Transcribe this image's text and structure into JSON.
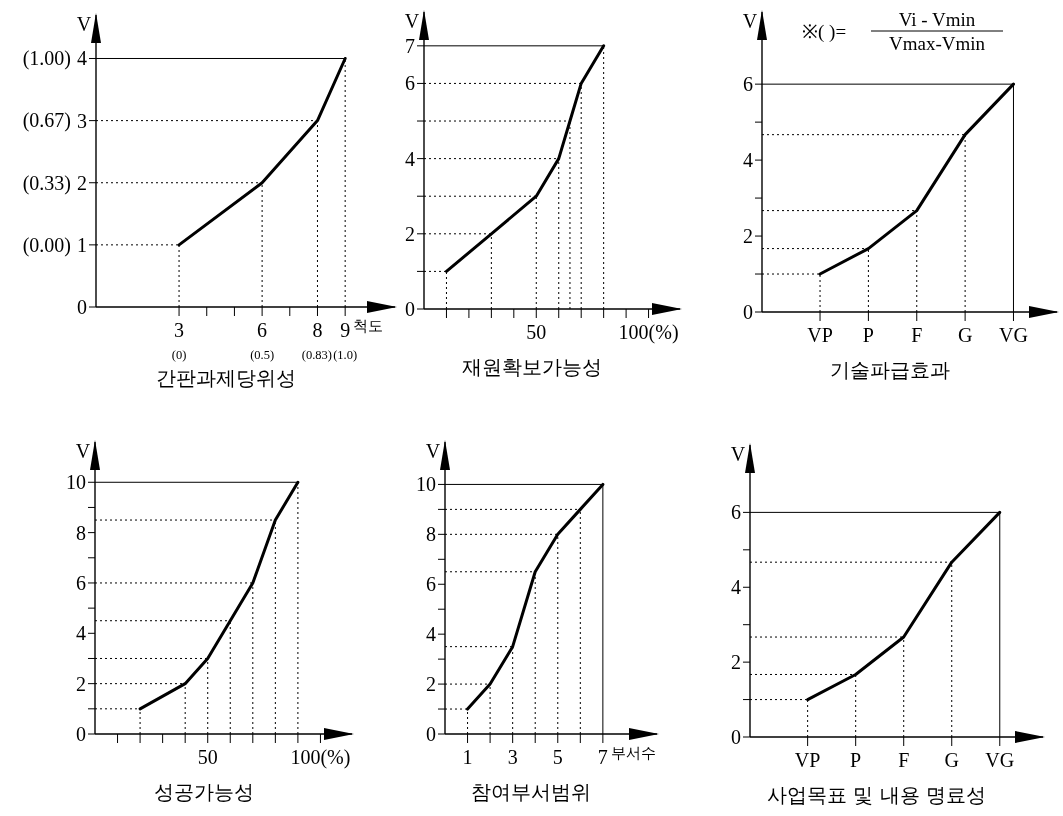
{
  "chart_data": [
    {
      "type": "line",
      "ylabel": "V",
      "xlabel": "간판과제당위성",
      "color": "#000000",
      "annotations": [
        "척도"
      ],
      "x": [
        3,
        6,
        8,
        9
      ],
      "values": [
        1,
        2,
        3,
        4
      ],
      "xlim": [
        0,
        10.8
      ],
      "ylim": [
        0,
        4.7
      ],
      "xticks": [
        3,
        {
          "value": 4,
          "label": null
        },
        {
          "value": 5,
          "label": null
        },
        6,
        {
          "value": 7,
          "label": null
        },
        8,
        9
      ],
      "x2lim": [
        -0.5,
        1.3
      ],
      "x2ticks": [
        {
          "value": 0,
          "label": "(0)"
        },
        {
          "value": 0.5,
          "label": "(0.5)"
        },
        {
          "value": 0.83,
          "label": "(0.83)"
        },
        {
          "value": 1,
          "label": "(1.0)"
        }
      ],
      "yticks": [
        0,
        1,
        2,
        3,
        4
      ],
      "y2lim": [
        -0.3333,
        1.2333
      ],
      "y2ticks": [
        {
          "value": 0,
          "label": "(0.00)"
        },
        {
          "value": 0.33,
          "label": "(0.33)"
        },
        {
          "value": 0.67,
          "label": "(0.67)"
        },
        {
          "value": 1,
          "label": "(1.00)"
        }
      ],
      "ref_lines": [
        {
          "axis": "y",
          "value": 1,
          "line_style": "dotted",
          "color": "#000000"
        },
        {
          "axis": "y",
          "value": 2,
          "line_style": "dotted",
          "color": "#000000"
        },
        {
          "axis": "y",
          "value": 3,
          "line_style": "dotted",
          "color": "#000000"
        },
        {
          "axis": "y",
          "value": 4,
          "line_style": "solid",
          "color": "#000000"
        },
        {
          "axis": "x",
          "value": 3,
          "line_style": "dotted",
          "color": "#000000"
        },
        {
          "axis": "x",
          "value": 6,
          "line_style": "dotted",
          "color": "#000000"
        },
        {
          "axis": "x",
          "value": 8,
          "line_style": "dotted",
          "color": "#000000"
        },
        {
          "axis": "x",
          "value": 9,
          "line_style": "dotted",
          "color": "#000000"
        }
      ]
    },
    {
      "type": "line",
      "ylabel": "V",
      "xlabel": "재원확보가능성",
      "color": "#000000",
      "x": [
        10,
        30,
        50,
        60,
        65,
        70,
        80
      ],
      "values": [
        1,
        2,
        3,
        4,
        5,
        6,
        7
      ],
      "xlim": [
        0,
        114
      ],
      "ylim": [
        0,
        7.9
      ],
      "xticks": [
        {
          "value": 10,
          "label": null
        },
        {
          "value": 20,
          "label": null
        },
        {
          "value": 30,
          "label": null
        },
        {
          "value": 40,
          "label": null
        },
        50,
        {
          "value": 60,
          "label": null
        },
        {
          "value": 70,
          "label": null
        },
        {
          "value": 80,
          "label": null
        },
        {
          "value": 90,
          "label": null
        },
        {
          "value": 100,
          "label": "100(%)"
        }
      ],
      "yticks": [
        0,
        {
          "value": 1,
          "label": null
        },
        2,
        {
          "value": 3,
          "label": null
        },
        4,
        {
          "value": 5,
          "label": null
        },
        6,
        7
      ],
      "ref_lines": [
        {
          "axis": "y",
          "value": 1,
          "line_style": "dotted",
          "color": "#000000"
        },
        {
          "axis": "y",
          "value": 2,
          "line_style": "dotted",
          "color": "#000000"
        },
        {
          "axis": "y",
          "value": 3,
          "line_style": "dotted",
          "color": "#000000"
        },
        {
          "axis": "y",
          "value": 4,
          "line_style": "dotted",
          "color": "#000000"
        },
        {
          "axis": "y",
          "value": 5,
          "line_style": "dotted",
          "color": "#000000"
        },
        {
          "axis": "y",
          "value": 6,
          "line_style": "dotted",
          "color": "#000000"
        },
        {
          "axis": "y",
          "value": 7,
          "line_style": "solid",
          "color": "#000000"
        },
        {
          "axis": "x",
          "value": 10,
          "line_style": "dotted",
          "color": "#000000"
        },
        {
          "axis": "x",
          "value": 30,
          "line_style": "dotted",
          "color": "#000000"
        },
        {
          "axis": "x",
          "value": 50,
          "line_style": "dotted",
          "color": "#000000"
        },
        {
          "axis": "x",
          "value": 60,
          "line_style": "dotted",
          "color": "#000000"
        },
        {
          "axis": "x",
          "value": 65,
          "line_style": "dotted",
          "color": "#000000"
        },
        {
          "axis": "x",
          "value": 70,
          "line_style": "dotted",
          "color": "#000000"
        },
        {
          "axis": "x",
          "value": 80,
          "line_style": "dotted",
          "color": "#000000"
        }
      ]
    },
    {
      "type": "line",
      "ylabel": "V",
      "xlabel": "기술파급효과",
      "color": "#000000",
      "annotations": [
        "※( )=",
        "Vi - Vmin",
        "Vmax-Vmin"
      ],
      "categories": [
        "VP",
        "P",
        "F",
        "G",
        "VG"
      ],
      "values": [
        1,
        1.67,
        2.67,
        4.67,
        6
      ],
      "ylim": [
        0,
        7.9
      ],
      "yticks": [
        0,
        {
          "value": 1,
          "label": null
        },
        2,
        {
          "value": 3,
          "label": null
        },
        4,
        {
          "value": 5,
          "label": null
        },
        6
      ],
      "ref_lines": [
        {
          "axis": "y",
          "value": 1,
          "line_style": "dotted",
          "color": "#000000"
        },
        {
          "axis": "y",
          "value": 1.67,
          "line_style": "dotted",
          "color": "#000000"
        },
        {
          "axis": "y",
          "value": 2.67,
          "line_style": "dotted",
          "color": "#000000"
        },
        {
          "axis": "y",
          "value": 4.67,
          "line_style": "dotted",
          "color": "#000000"
        },
        {
          "axis": "y",
          "value": 6,
          "line_style": "solid",
          "color": "#000000"
        },
        {
          "axis": "x",
          "value": "VP",
          "line_style": "dotted",
          "color": "#000000"
        },
        {
          "axis": "x",
          "value": "P",
          "line_style": "dotted",
          "color": "#000000"
        },
        {
          "axis": "x",
          "value": "F",
          "line_style": "dotted",
          "color": "#000000"
        },
        {
          "axis": "x",
          "value": "G",
          "line_style": "dotted",
          "color": "#000000"
        },
        {
          "axis": "x",
          "value": "VG",
          "line_style": "solid",
          "color": "#000000"
        }
      ]
    },
    {
      "type": "line",
      "ylabel": "V",
      "xlabel": "성공가능성",
      "color": "#000000",
      "x": [
        20,
        40,
        50,
        60,
        70,
        80,
        90
      ],
      "values": [
        1,
        2,
        3,
        4.5,
        6,
        8.5,
        10
      ],
      "xlim": [
        0,
        114
      ],
      "ylim": [
        0,
        11.6
      ],
      "xticks": [
        {
          "value": 10,
          "label": null
        },
        {
          "value": 20,
          "label": null
        },
        {
          "value": 30,
          "label": null
        },
        {
          "value": 40,
          "label": null
        },
        50,
        {
          "value": 60,
          "label": null
        },
        {
          "value": 70,
          "label": null
        },
        {
          "value": 80,
          "label": null
        },
        {
          "value": 90,
          "label": null
        },
        {
          "value": 100,
          "label": "100(%)"
        }
      ],
      "yticks": [
        0,
        {
          "value": 1,
          "label": null
        },
        2,
        {
          "value": 3,
          "label": null
        },
        4,
        {
          "value": 5,
          "label": null
        },
        6,
        {
          "value": 7,
          "label": null
        },
        8,
        {
          "value": 9,
          "label": null
        },
        10
      ],
      "ref_lines": [
        {
          "axis": "y",
          "value": 1,
          "line_style": "dotted",
          "color": "#000000"
        },
        {
          "axis": "y",
          "value": 2,
          "line_style": "dotted",
          "color": "#000000"
        },
        {
          "axis": "y",
          "value": 3,
          "line_style": "dotted",
          "color": "#000000"
        },
        {
          "axis": "y",
          "value": 4.5,
          "line_style": "dotted",
          "color": "#000000"
        },
        {
          "axis": "y",
          "value": 6,
          "line_style": "dotted",
          "color": "#000000"
        },
        {
          "axis": "y",
          "value": 8.5,
          "line_style": "dotted",
          "color": "#000000"
        },
        {
          "axis": "y",
          "value": 10,
          "line_style": "solid",
          "color": "#000000"
        },
        {
          "axis": "x",
          "value": 20,
          "line_style": "dotted",
          "color": "#000000"
        },
        {
          "axis": "x",
          "value": 40,
          "line_style": "dotted",
          "color": "#000000"
        },
        {
          "axis": "x",
          "value": 50,
          "line_style": "dotted",
          "color": "#000000"
        },
        {
          "axis": "x",
          "value": 60,
          "line_style": "dotted",
          "color": "#000000"
        },
        {
          "axis": "x",
          "value": 70,
          "line_style": "dotted",
          "color": "#000000"
        },
        {
          "axis": "x",
          "value": 80,
          "line_style": "dotted",
          "color": "#000000"
        },
        {
          "axis": "x",
          "value": 90,
          "line_style": "dotted",
          "color": "#000000"
        }
      ]
    },
    {
      "type": "line",
      "ylabel": "V",
      "xlabel": "참여부서범위",
      "color": "#000000",
      "annotations": [
        "부서수"
      ],
      "x": [
        1,
        2,
        3,
        4,
        5,
        6,
        7
      ],
      "values": [
        1,
        2,
        3.5,
        6.5,
        8,
        9,
        10
      ],
      "xlim": [
        0,
        9.4
      ],
      "ylim": [
        0,
        11.7
      ],
      "xticks": [
        1,
        {
          "value": 2,
          "label": null
        },
        3,
        {
          "value": 4,
          "label": null
        },
        5,
        {
          "value": 6,
          "label": null
        },
        7
      ],
      "yticks": [
        0,
        {
          "value": 1,
          "label": null
        },
        2,
        {
          "value": 3,
          "label": null
        },
        4,
        {
          "value": 5,
          "label": null
        },
        6,
        {
          "value": 7,
          "label": null
        },
        8,
        {
          "value": 9,
          "label": null
        },
        10
      ],
      "ref_lines": [
        {
          "axis": "y",
          "value": 1,
          "line_style": "dotted",
          "color": "#000000"
        },
        {
          "axis": "y",
          "value": 2,
          "line_style": "dotted",
          "color": "#000000"
        },
        {
          "axis": "y",
          "value": 3.5,
          "line_style": "dotted",
          "color": "#000000"
        },
        {
          "axis": "y",
          "value": 6.5,
          "line_style": "dotted",
          "color": "#000000"
        },
        {
          "axis": "y",
          "value": 8,
          "line_style": "dotted",
          "color": "#000000"
        },
        {
          "axis": "y",
          "value": 9,
          "line_style": "dotted",
          "color": "#000000"
        },
        {
          "axis": "y",
          "value": 10,
          "line_style": "solid",
          "color": "#000000"
        },
        {
          "axis": "x",
          "value": 1,
          "line_style": "dotted",
          "color": "#000000"
        },
        {
          "axis": "x",
          "value": 2,
          "line_style": "dotted",
          "color": "#000000"
        },
        {
          "axis": "x",
          "value": 3,
          "line_style": "dotted",
          "color": "#000000"
        },
        {
          "axis": "x",
          "value": 4,
          "line_style": "dotted",
          "color": "#000000"
        },
        {
          "axis": "x",
          "value": 5,
          "line_style": "dotted",
          "color": "#000000"
        },
        {
          "axis": "x",
          "value": 6,
          "line_style": "dotted",
          "color": "#000000"
        },
        {
          "axis": "x",
          "value": 7,
          "line_style": "solid",
          "color": "#000000"
        }
      ]
    },
    {
      "type": "line",
      "ylabel": "V",
      "xlabel": "사업목표 및 내용 명료성",
      "color": "#000000",
      "categories": [
        "VP",
        "P",
        "F",
        "G",
        "VG"
      ],
      "values": [
        1,
        1.67,
        2.67,
        4.67,
        6
      ],
      "ylim": [
        0,
        7.8
      ],
      "yticks": [
        0,
        {
          "value": 1,
          "label": null
        },
        2,
        {
          "value": 3,
          "label": null
        },
        4,
        {
          "value": 5,
          "label": null
        },
        6
      ],
      "ref_lines": [
        {
          "axis": "y",
          "value": 1,
          "line_style": "dotted",
          "color": "#000000"
        },
        {
          "axis": "y",
          "value": 1.67,
          "line_style": "dotted",
          "color": "#000000"
        },
        {
          "axis": "y",
          "value": 2.67,
          "line_style": "dotted",
          "color": "#000000"
        },
        {
          "axis": "y",
          "value": 4.67,
          "line_style": "dotted",
          "color": "#000000"
        },
        {
          "axis": "y",
          "value": 6,
          "line_style": "solid",
          "color": "#000000"
        },
        {
          "axis": "x",
          "value": "VP",
          "line_style": "dotted",
          "color": "#000000"
        },
        {
          "axis": "x",
          "value": "P",
          "line_style": "dotted",
          "color": "#000000"
        },
        {
          "axis": "x",
          "value": "F",
          "line_style": "dotted",
          "color": "#000000"
        },
        {
          "axis": "x",
          "value": "G",
          "line_style": "dotted",
          "color": "#000000"
        },
        {
          "axis": "x",
          "value": "VG",
          "line_style": "solid",
          "color": "#000000"
        }
      ]
    }
  ]
}
